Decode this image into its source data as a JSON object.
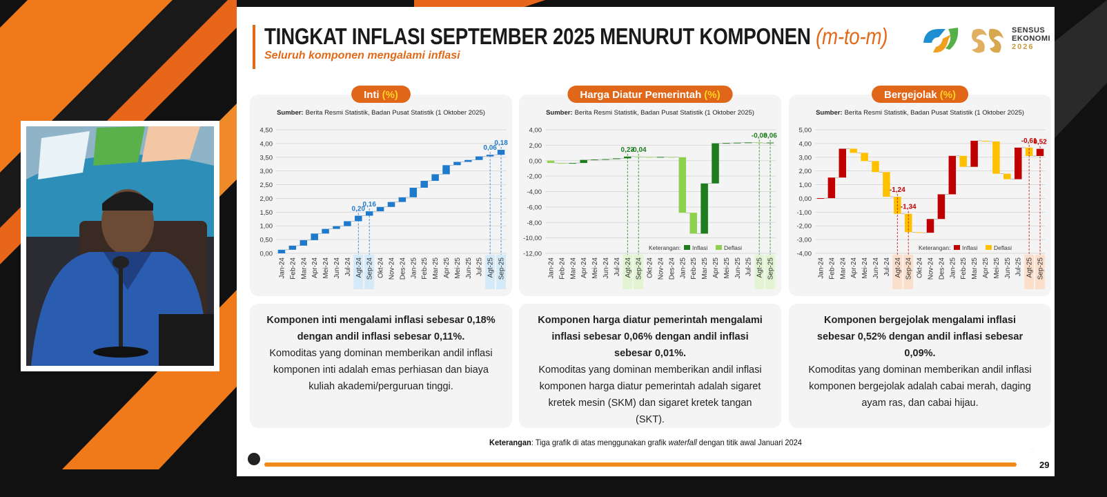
{
  "header": {
    "title": "TINGKAT INFLASI SEPTEMBER 2025 MENURUT KOMPONEN",
    "title_suffix": "(m-to-m)",
    "subtitle": "Seluruh komponen mengalami inflasi"
  },
  "logo": {
    "line1": "SENSUS",
    "line2": "EKONOMI",
    "line3": "2026"
  },
  "chart_data": [
    {
      "type": "waterfall",
      "title": "Inti",
      "title_unit": "(%)",
      "source_label": "Sumber:",
      "source": "Berita Resmi Statistik, Badan Pusat Statistik (1 Oktober 2025)",
      "categories": [
        "Jan-24",
        "Feb-24",
        "Mar-24",
        "Apr-24",
        "Mei-24",
        "Jun-24",
        "Jul-24",
        "Agt-24",
        "Sep-24",
        "Okt-24",
        "Nov-24",
        "Des-24",
        "Jan-25",
        "Feb-25",
        "Mar-25",
        "Apr-25",
        "Mei-25",
        "Jun-25",
        "Jul-25",
        "Agt-25",
        "Sep-25"
      ],
      "values": [
        0.13,
        0.15,
        0.2,
        0.24,
        0.17,
        0.1,
        0.18,
        0.2,
        0.16,
        0.16,
        0.18,
        0.17,
        0.35,
        0.25,
        0.24,
        0.33,
        0.12,
        0.07,
        0.13,
        0.06,
        0.18
      ],
      "value_labels": [
        null,
        null,
        null,
        null,
        null,
        null,
        null,
        "0,20",
        "0,16",
        null,
        null,
        null,
        null,
        null,
        null,
        null,
        null,
        null,
        null,
        "0,06",
        "0,18"
      ],
      "color": "#1f7acc",
      "highlight_color": "#d4eaf8",
      "ylim": [
        0,
        4.5
      ],
      "yticks": [
        {
          "value": 0,
          "label": "0,00"
        },
        {
          "value": 0.5,
          "label": "0,50"
        },
        {
          "value": 1,
          "label": "1,00"
        },
        {
          "value": 1.5,
          "label": "1,50"
        },
        {
          "value": 2,
          "label": "2,00"
        },
        {
          "value": 2.5,
          "label": "2,50"
        },
        {
          "value": 3,
          "label": "3,00"
        },
        {
          "value": 3.5,
          "label": "3,50"
        },
        {
          "value": 4,
          "label": "4,00"
        },
        {
          "value": 4.5,
          "label": "4,50"
        }
      ],
      "grid": true
    },
    {
      "type": "waterfall",
      "title": "Harga Diatur Pemerintah",
      "title_unit": "(%)",
      "source_label": "Sumber:",
      "source": "Berita Resmi Statistik, Badan Pusat Statistik (1 Oktober 2025)",
      "categories": [
        "Jan-24",
        "Feb-24",
        "Mar-24",
        "Apr-24",
        "Mei-24",
        "Jun-24",
        "Jul-24",
        "Agt-24",
        "Sep-24",
        "Okt-24",
        "Nov-24",
        "Des-24",
        "Jan-25",
        "Feb-25",
        "Mar-25",
        "Apr-25",
        "Mei-25",
        "Jun-25",
        "Jul-25",
        "Agt-25",
        "Sep-25"
      ],
      "values": [
        -0.3,
        -0.05,
        0.05,
        0.4,
        0.05,
        0.05,
        0.1,
        0.23,
        -0.04,
        -0.02,
        0.02,
        -0.04,
        -7.2,
        -2.7,
        6.5,
        5.2,
        0.04,
        0.04,
        0.03,
        -0.08,
        0.06
      ],
      "value_labels": [
        null,
        null,
        null,
        null,
        null,
        null,
        null,
        "0,23",
        "-0,04",
        null,
        null,
        null,
        null,
        null,
        null,
        null,
        null,
        null,
        null,
        "-0,08",
        "0,06"
      ],
      "increase_color": "#1e7b1e",
      "decrease_color": "#8fd14f",
      "highlight_color": "#e2f4d2",
      "legend": {
        "title": "Keterangan:",
        "increase": "Inflasi",
        "decrease": "Deflasi"
      },
      "ylim": [
        -12,
        4
      ],
      "yticks": [
        {
          "value": -12,
          "label": "-12,00"
        },
        {
          "value": -10,
          "label": "-10,00"
        },
        {
          "value": -8,
          "label": "-8,00"
        },
        {
          "value": -6,
          "label": "-6,00"
        },
        {
          "value": -4,
          "label": "-4,00"
        },
        {
          "value": -2,
          "label": "-2,00"
        },
        {
          "value": 0,
          "label": "0,00"
        },
        {
          "value": 2,
          "label": "2,00"
        },
        {
          "value": 4,
          "label": "4,00"
        }
      ],
      "grid": true
    },
    {
      "type": "waterfall",
      "title": "Bergejolak",
      "title_unit": "(%)",
      "source_label": "Sumber:",
      "source": "Berita Resmi Statistik, Badan Pusat Statistik (1 Oktober 2025)",
      "categories": [
        "Jan-24",
        "Feb-24",
        "Mar-24",
        "Apr-24",
        "Mei-24",
        "Jun-24",
        "Jul-24",
        "Agt-24",
        "Sep-24",
        "Okt-24",
        "Nov-24",
        "Des-24",
        "Jan-25",
        "Feb-25",
        "Mar-25",
        "Apr-25",
        "Mei-25",
        "Jun-25",
        "Jul-25",
        "Agt-25",
        "Sep-25"
      ],
      "values": [
        0.02,
        1.5,
        2.1,
        -0.3,
        -0.6,
        -0.8,
        -1.8,
        -1.24,
        -1.34,
        -0.04,
        1.0,
        1.8,
        2.8,
        -0.8,
        1.9,
        -0.05,
        -2.35,
        -0.4,
        2.3,
        -0.61,
        0.52
      ],
      "value_labels": [
        null,
        null,
        null,
        null,
        null,
        null,
        null,
        "-1,24",
        "-1,34",
        null,
        null,
        null,
        null,
        null,
        null,
        null,
        null,
        null,
        null,
        "-0,61",
        "0,52"
      ],
      "increase_color": "#c00000",
      "decrease_color": "#ffc000",
      "highlight_color": "#fbdfcb",
      "legend": {
        "title": "Keterangan:",
        "increase": "Inflasi",
        "decrease": "Deflasi"
      },
      "ylim": [
        -4,
        5
      ],
      "yticks": [
        {
          "value": -4,
          "label": "-4,00"
        },
        {
          "value": -3,
          "label": "-3,00"
        },
        {
          "value": -2,
          "label": "-2,00"
        },
        {
          "value": -1,
          "label": "-1,00"
        },
        {
          "value": 0,
          "label": "0,00"
        },
        {
          "value": 1,
          "label": "1,00"
        },
        {
          "value": 2,
          "label": "2,00"
        },
        {
          "value": 3,
          "label": "3,00"
        },
        {
          "value": 4,
          "label": "4,00"
        },
        {
          "value": 5,
          "label": "5,00"
        }
      ],
      "grid": true
    }
  ],
  "notes": [
    {
      "bold": "Komponen inti mengalami inflasi sebesar 0,18% dengan andil inflasi sebesar 0,11%.",
      "text": "Komoditas yang dominan memberikan andil inflasi komponen inti adalah emas perhiasan dan biaya kuliah akademi/perguruan tinggi."
    },
    {
      "bold": "Komponen harga diatur pemerintah mengalami inflasi sebesar 0,06% dengan andil inflasi sebesar 0,01%.",
      "text": "Komoditas yang dominan memberikan andil inflasi komponen harga diatur pemerintah adalah sigaret kretek mesin (SKM) dan sigaret kretek tangan (SKT)."
    },
    {
      "bold": "Komponen bergejolak mengalami inflasi sebesar 0,52% dengan andil inflasi sebesar 0,09%.",
      "text": "Komoditas yang dominan memberikan andil inflasi komponen bergejolak adalah cabai merah, daging ayam ras, dan cabai hijau."
    }
  ],
  "footer": {
    "label": "Keterangan",
    "text_before": ": Tiga grafik di atas menggunakan grafik ",
    "emphasis": "waterfall",
    "text_after": " dengan titik awal Januari 2024"
  },
  "page_number": "29"
}
